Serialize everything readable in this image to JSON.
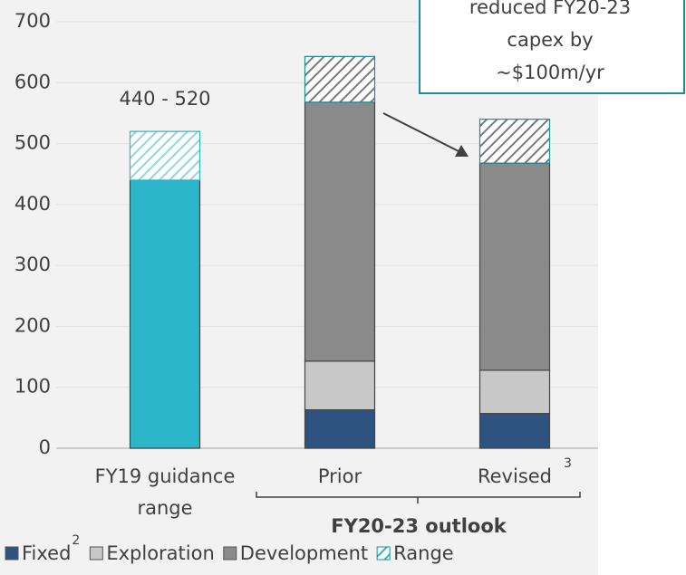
{
  "chart_data": {
    "type": "stacked_bar",
    "categories": [
      "FY19 guidance range",
      "Prior",
      "Revised"
    ],
    "category_superscripts": [
      null,
      null,
      "3"
    ],
    "series": [
      {
        "color": "#2bb6c9",
        "values": [
          440,
          null,
          null
        ]
      },
      {
        "name": "Fixed",
        "superscript": "2",
        "color": "#2f5380",
        "values": [
          null,
          63,
          57
        ]
      },
      {
        "name": "Exploration",
        "color": "#c8c8c8",
        "values": [
          null,
          80,
          71
        ]
      },
      {
        "name": "Development",
        "color": "#8a8a8a",
        "values": [
          null,
          425,
          340
        ]
      },
      {
        "name": "Range",
        "color": "#2bb6c9",
        "hatch": true,
        "colors": [
          "#8fd6e0",
          "#7a7a7a",
          "#7a7a7a"
        ],
        "values": [
          80,
          75,
          72
        ]
      }
    ],
    "ylim": [
      0,
      700
    ],
    "yticks": [
      0,
      100,
      200,
      300,
      400,
      500,
      600,
      700
    ],
    "grid": true,
    "annotations": {
      "range_label": "440 - 520",
      "group_label": "FY20-23 outlook",
      "callout": [
        "reduced FY20-23",
        "capex by",
        "~$100m/yr"
      ]
    }
  }
}
